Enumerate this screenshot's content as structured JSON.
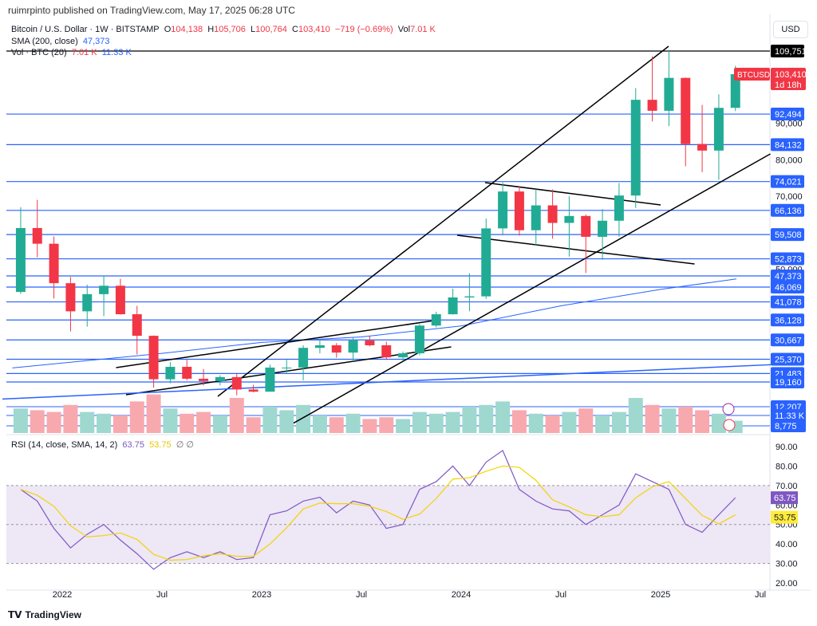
{
  "header": {
    "published": "ruimrpinto published on TradingView.com, May 17, 2025 06:28 UTC"
  },
  "legend": {
    "symbol": "Bitcoin / U.S. Dollar · 1W · BITSTAMP",
    "o_label": "O",
    "o": "104,138",
    "h_label": "H",
    "h": "105,706",
    "l_label": "L",
    "l": "100,764",
    "c_label": "C",
    "c": "103,410",
    "change": "−719 (−0.69%)",
    "vol_label": "Vol",
    "vol": "7.01 K",
    "sma_label": "SMA (200, close)",
    "sma": "47,373",
    "volume_label": "Vol · BTC (20)",
    "volume_val": "7.01 K",
    "volume_ma": "11.33 K"
  },
  "rsi_legend": {
    "label": "RSI (14, close, SMA, 14, 2)",
    "rsi": "63.75",
    "sma": "53.75",
    "icons": "∅ ∅"
  },
  "currency_button": "USD",
  "footer": {
    "brand": "TradingView"
  },
  "colors": {
    "up": "#22ab94",
    "down": "#f23645",
    "level": "#2962ff",
    "sma": "#2962ff",
    "rsi": "#7e57c2",
    "rsi_sma": "#f5d300",
    "rsi_band": "#ede7f6"
  },
  "chart_data": {
    "type": "candlestick",
    "symbol_tag": "BTCUSD",
    "last_price": "103,410",
    "countdown": "1d 18h",
    "months": [
      "2021-10",
      "2021-11",
      "2021-12",
      "2022-01",
      "2022-02",
      "2022-03",
      "2022-04",
      "2022-05",
      "2022-06",
      "2022-07",
      "2022-08",
      "2022-09",
      "2022-10",
      "2022-11",
      "2022-12",
      "2023-01",
      "2023-02",
      "2023-03",
      "2023-04",
      "2023-05",
      "2023-06",
      "2023-07",
      "2023-08",
      "2023-09",
      "2023-10",
      "2023-11",
      "2023-12",
      "2024-01",
      "2024-02",
      "2024-03",
      "2024-04",
      "2024-05",
      "2024-06",
      "2024-07",
      "2024-08",
      "2024-09",
      "2024-10",
      "2024-11",
      "2024-12",
      "2025-01",
      "2025-02",
      "2025-03",
      "2025-04",
      "2025-05"
    ],
    "ohlc": [
      [
        43800,
        67000,
        43300,
        61300
      ],
      [
        61300,
        69000,
        53300,
        57000
      ],
      [
        57000,
        59000,
        42000,
        46200
      ],
      [
        46200,
        47900,
        33000,
        38500
      ],
      [
        38500,
        45800,
        34300,
        43200
      ],
      [
        43200,
        48200,
        37200,
        45500
      ],
      [
        45500,
        47400,
        37600,
        37700
      ],
      [
        37700,
        40000,
        26700,
        31800
      ],
      [
        31800,
        31900,
        17600,
        19900
      ],
      [
        19900,
        24600,
        18800,
        23300
      ],
      [
        23300,
        25200,
        19600,
        20050
      ],
      [
        20050,
        22700,
        18200,
        19400
      ],
      [
        19400,
        21000,
        18200,
        20500
      ],
      [
        20500,
        21400,
        15500,
        17100
      ],
      [
        17100,
        18400,
        16300,
        16500
      ],
      [
        16500,
        23900,
        16500,
        23100
      ],
      [
        23100,
        25200,
        21400,
        23100
      ],
      [
        23100,
        29200,
        19600,
        28500
      ],
      [
        28500,
        31000,
        27000,
        29200
      ],
      [
        29200,
        29800,
        25800,
        27200
      ],
      [
        27200,
        31400,
        24800,
        30500
      ],
      [
        30500,
        31800,
        28900,
        29200
      ],
      [
        29200,
        30200,
        25200,
        25900
      ],
      [
        25900,
        27500,
        24900,
        27000
      ],
      [
        27000,
        35000,
        26500,
        34600
      ],
      [
        34600,
        38400,
        34100,
        37700
      ],
      [
        37700,
        44700,
        37600,
        42300
      ],
      [
        42300,
        48900,
        38500,
        42600
      ],
      [
        42600,
        63900,
        41900,
        61200
      ],
      [
        61200,
        73800,
        59300,
        71300
      ],
      [
        71300,
        72800,
        59200,
        60700
      ],
      [
        60700,
        71900,
        56500,
        67500
      ],
      [
        67500,
        71900,
        58400,
        62700
      ],
      [
        62700,
        70000,
        53500,
        64600
      ],
      [
        64600,
        65000,
        49000,
        58900
      ],
      [
        58900,
        66500,
        52600,
        63300
      ],
      [
        63300,
        73600,
        58900,
        70200
      ],
      [
        70200,
        99600,
        66800,
        96400
      ],
      [
        96400,
        108300,
        90500,
        93400
      ],
      [
        93400,
        109751,
        89200,
        102400
      ],
      [
        102400,
        102500,
        78200,
        84300
      ],
      [
        84300,
        95000,
        76600,
        82500
      ],
      [
        82500,
        97900,
        74500,
        94200
      ],
      [
        94200,
        105706,
        93300,
        103410
      ]
    ],
    "volume_k": [
      14,
      13,
      12,
      16,
      12,
      11,
      10,
      18,
      22,
      14,
      11,
      12,
      10,
      20,
      9,
      15,
      13,
      16,
      10,
      9,
      11,
      8,
      9,
      8,
      12,
      11,
      12,
      15,
      16,
      18,
      13,
      11,
      10,
      12,
      14,
      10,
      12,
      20,
      16,
      14,
      15,
      13,
      11,
      7.01
    ],
    "sma200": [
      [
        2021.75,
        23000
      ],
      [
        2022.5,
        27000
      ],
      [
        2023.0,
        30000
      ],
      [
        2023.5,
        31500
      ],
      [
        2024.0,
        34500
      ],
      [
        2024.5,
        40000
      ],
      [
        2025.0,
        44500
      ],
      [
        2025.38,
        47373
      ]
    ],
    "rsi": [
      68,
      62,
      48,
      38,
      45,
      50,
      42,
      35,
      27,
      33,
      36,
      33,
      36,
      32,
      33,
      55,
      57,
      62,
      64,
      56,
      62,
      60,
      48,
      50,
      68,
      72,
      80,
      70,
      82,
      88,
      68,
      62,
      58,
      57,
      50,
      55,
      60,
      76,
      72,
      68,
      50,
      46,
      55,
      63.75
    ],
    "levels": [
      "109,751",
      "92,494",
      "84,132",
      "74,021",
      "66,136",
      "59,508",
      "52,873",
      "47,373",
      "46,069",
      "41,078",
      "36,128",
      "30,667",
      "25,370",
      "21,483",
      "19,160"
    ],
    "volume_levels": [
      "12,207",
      "11.33 K",
      "8,775"
    ],
    "price_ticks": [
      "90,000",
      "80,000",
      "70,000",
      "50,000"
    ],
    "rsi_ticks": [
      "90.00",
      "80.00",
      "70.00",
      "60.00",
      "50.00",
      "40.00",
      "30.00",
      "20.00"
    ],
    "time_ticks": [
      "2022",
      "Jul",
      "2023",
      "Jul",
      "2024",
      "Jul",
      "2025",
      "Jul"
    ],
    "trendlines": [
      [
        [
          2022.78,
          15230
        ],
        [
          2025.04,
          111060
        ]
      ],
      [
        [
          2023.16,
          7900
        ],
        [
          2025.55,
          81590
        ]
      ],
      [
        [
          2022.27,
          23080
        ],
        [
          2023.89,
          36180
        ]
      ],
      [
        [
          2022.32,
          15660
        ],
        [
          2023.95,
          28760
        ]
      ],
      [
        [
          2024.12,
          73730
        ],
        [
          2025.0,
          67620
        ]
      ],
      [
        [
          2023.98,
          59320
        ],
        [
          2025.17,
          51460
        ]
      ],
      [
        [
          2021.7,
          14500
        ],
        [
          2025.6,
          24000
        ]
      ]
    ]
  }
}
